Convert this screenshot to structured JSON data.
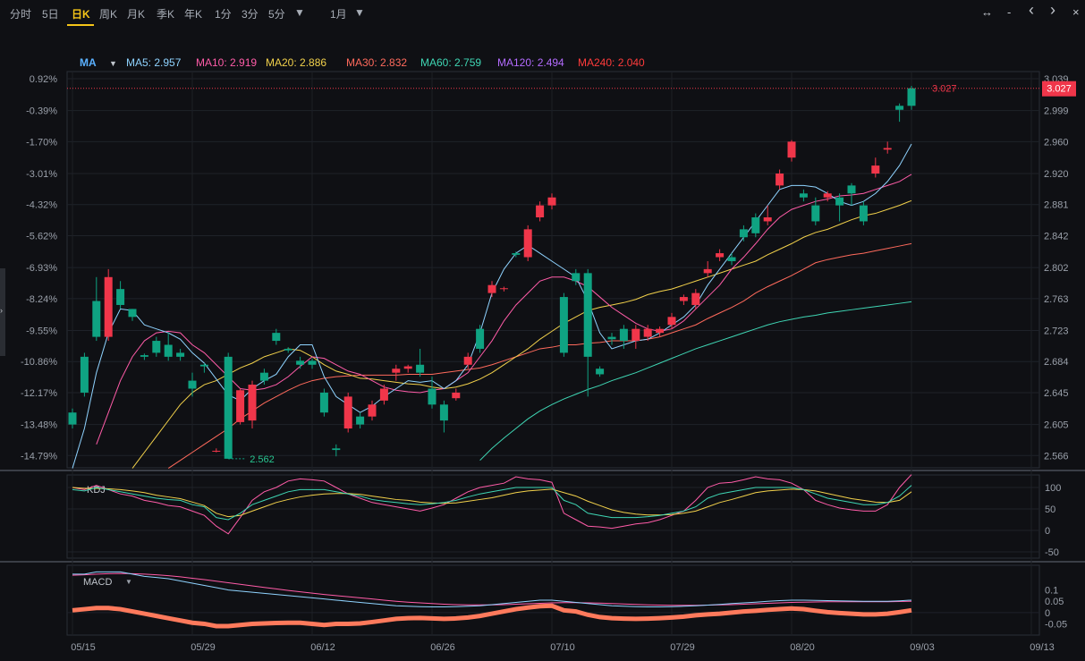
{
  "toolbar": {
    "periods": [
      "分时",
      "5日",
      "日K",
      "周K",
      "月K",
      "季K",
      "年K",
      "1分",
      "3分",
      "5分"
    ],
    "active": "日K",
    "range": "1月",
    "icons": [
      "expand-horizontal-icon",
      "zoom-out-icon",
      "chevron-left-icon",
      "chevron-right-icon",
      "close-icon"
    ]
  },
  "legend": {
    "ma_label": "MA",
    "items": [
      {
        "text": "MA5: 2.957",
        "color": "#8fd3ff"
      },
      {
        "text": "MA10: 2.919",
        "color": "#ff5ca8"
      },
      {
        "text": "MA20: 2.886",
        "color": "#f2d14b"
      },
      {
        "text": "MA30: 2.832",
        "color": "#ff6a5c"
      },
      {
        "text": "MA60: 2.759",
        "color": "#3fd6b4"
      },
      {
        "text": "MA120: 2.494",
        "color": "#b46bff"
      },
      {
        "text": "MA240: 2.040",
        "color": "#ff3b3b"
      }
    ]
  },
  "colors": {
    "up": "#f0364a",
    "down": "#0fa382",
    "ma5": "#8fd3ff",
    "ma10": "#ff5ca8",
    "ma20": "#f2d14b",
    "ma30": "#ff6a5c",
    "ma60": "#3fd6b4",
    "macd_bar": "#ff7a5c"
  },
  "chart_data": {
    "type": "candlestick",
    "y_ticks_price": [
      "3.039",
      "2.999",
      "2.960",
      "2.920",
      "2.881",
      "2.842",
      "2.802",
      "2.763",
      "2.723",
      "2.684",
      "2.645",
      "2.605",
      "2.566"
    ],
    "y_ticks_pct": [
      "0.92%",
      "-0.39%",
      "-1.70%",
      "-3.01%",
      "-4.32%",
      "-5.62%",
      "-6.93%",
      "-8.24%",
      "-9.55%",
      "-10.86%",
      "-12.17%",
      "-13.48%",
      "-14.79%"
    ],
    "x_ticks": [
      "05/15",
      "05/29",
      "06/12",
      "06/26",
      "07/10",
      "07/29",
      "08/20",
      "09/03",
      "09/13"
    ],
    "x_tick_index": [
      0,
      10,
      20,
      30,
      40,
      50,
      60,
      70,
      80
    ],
    "y_range": [
      2.554,
      3.048
    ],
    "last_price": "3.027",
    "low_label": "2.562",
    "low_index": 13,
    "candles": [
      [
        2.62,
        2.605,
        2.625,
        2.6
      ],
      [
        2.69,
        2.645,
        2.695,
        2.64
      ],
      [
        2.76,
        2.715,
        2.79,
        2.71
      ],
      [
        2.715,
        2.79,
        2.8,
        2.71
      ],
      [
        2.775,
        2.755,
        2.785,
        2.75
      ],
      [
        2.75,
        2.74,
        2.75,
        2.735
      ],
      [
        2.692,
        2.69,
        2.694,
        2.686
      ],
      [
        2.71,
        2.695,
        2.715,
        2.69
      ],
      [
        2.705,
        2.69,
        2.72,
        2.685
      ],
      [
        2.695,
        2.69,
        2.7,
        2.685
      ],
      [
        2.66,
        2.65,
        2.67,
        2.64
      ],
      [
        2.68,
        2.678,
        2.682,
        2.67
      ],
      [
        2.572,
        2.572,
        2.575,
        2.57
      ],
      [
        2.69,
        2.562,
        2.695,
        2.562
      ],
      [
        2.608,
        2.648,
        2.65,
        2.605
      ],
      [
        2.61,
        2.655,
        2.66,
        2.6
      ],
      [
        2.67,
        2.66,
        2.675,
        2.655
      ],
      [
        2.72,
        2.71,
        2.725,
        2.705
      ],
      [
        2.7,
        2.698,
        2.702,
        2.695
      ],
      [
        2.685,
        2.68,
        2.69,
        2.675
      ],
      [
        2.685,
        2.68,
        2.688,
        2.675
      ],
      [
        2.645,
        2.62,
        2.65,
        2.615
      ],
      [
        2.575,
        2.573,
        2.58,
        2.565
      ],
      [
        2.6,
        2.64,
        2.645,
        2.595
      ],
      [
        2.615,
        2.605,
        2.62,
        2.6
      ],
      [
        2.615,
        2.63,
        2.635,
        2.61
      ],
      [
        2.635,
        2.65,
        2.655,
        2.63
      ],
      [
        2.67,
        2.675,
        2.68,
        2.66
      ],
      [
        2.675,
        2.678,
        2.68,
        2.67
      ],
      [
        2.68,
        2.67,
        2.7,
        2.665
      ],
      [
        2.65,
        2.63,
        2.665,
        2.625
      ],
      [
        2.63,
        2.61,
        2.635,
        2.595
      ],
      [
        2.638,
        2.645,
        2.65,
        2.635
      ],
      [
        2.68,
        2.69,
        2.695,
        2.675
      ],
      [
        2.725,
        2.7,
        2.73,
        2.695
      ],
      [
        2.77,
        2.78,
        2.785,
        2.765
      ],
      [
        2.775,
        2.776,
        2.778,
        2.772
      ],
      [
        2.82,
        2.818,
        2.822,
        2.815
      ],
      [
        2.815,
        2.85,
        2.855,
        2.81
      ],
      [
        2.865,
        2.88,
        2.885,
        2.86
      ],
      [
        2.88,
        2.89,
        2.895,
        2.875
      ],
      [
        2.765,
        2.695,
        2.77,
        2.69
      ],
      [
        2.795,
        2.785,
        2.8,
        2.78
      ],
      [
        2.795,
        2.69,
        2.8,
        2.64
      ],
      [
        2.675,
        2.668,
        2.678,
        2.665
      ],
      [
        2.715,
        2.712,
        2.72,
        2.705
      ],
      [
        2.725,
        2.71,
        2.73,
        2.7
      ],
      [
        2.71,
        2.725,
        2.73,
        2.7
      ],
      [
        2.715,
        2.725,
        2.73,
        2.71
      ],
      [
        2.72,
        2.725,
        2.728,
        2.715
      ],
      [
        2.73,
        2.74,
        2.745,
        2.725
      ],
      [
        2.76,
        2.765,
        2.768,
        2.755
      ],
      [
        2.755,
        2.77,
        2.775,
        2.75
      ],
      [
        2.795,
        2.8,
        2.81,
        2.79
      ],
      [
        2.815,
        2.82,
        2.825,
        2.81
      ],
      [
        2.815,
        2.81,
        2.82,
        2.805
      ],
      [
        2.85,
        2.84,
        2.855,
        2.835
      ],
      [
        2.865,
        2.845,
        2.87,
        2.84
      ],
      [
        2.86,
        2.865,
        2.88,
        2.855
      ],
      [
        2.905,
        2.92,
        2.925,
        2.9
      ],
      [
        2.94,
        2.96,
        2.962,
        2.935
      ],
      [
        2.895,
        2.89,
        2.9,
        2.885
      ],
      [
        2.88,
        2.86,
        2.89,
        2.855
      ],
      [
        2.89,
        2.895,
        2.898,
        2.885
      ],
      [
        2.89,
        2.88,
        2.895,
        2.86
      ],
      [
        2.905,
        2.895,
        2.908,
        2.88
      ],
      [
        2.88,
        2.86,
        2.885,
        2.855
      ],
      [
        2.92,
        2.93,
        2.94,
        2.915
      ],
      [
        2.95,
        2.952,
        2.96,
        2.945
      ],
      [
        3.005,
        3.0,
        3.008,
        2.985
      ],
      [
        3.027,
        3.005,
        3.03,
        3.0
      ]
    ],
    "ma5": [
      2.55,
      2.6,
      2.67,
      2.72,
      2.75,
      2.748,
      2.73,
      2.725,
      2.72,
      2.712,
      2.695,
      2.682,
      2.662,
      2.642,
      2.635,
      2.65,
      2.66,
      2.668,
      2.69,
      2.705,
      2.705,
      2.665,
      2.64,
      2.63,
      2.62,
      2.628,
      2.64,
      2.65,
      2.66,
      2.658,
      2.66,
      2.65,
      2.66,
      2.68,
      2.72,
      2.77,
      2.8,
      2.82,
      2.83,
      2.82,
      2.81,
      2.8,
      2.79,
      2.76,
      2.72,
      2.7,
      2.705,
      2.71,
      2.712,
      2.72,
      2.73,
      2.74,
      2.755,
      2.78,
      2.8,
      2.82,
      2.84,
      2.86,
      2.88,
      2.9,
      2.905,
      2.905,
      2.903,
      2.895,
      2.885,
      2.88,
      2.885,
      2.895,
      2.91,
      2.93,
      2.957
    ],
    "ma10": [
      2.5,
      2.53,
      2.58,
      2.62,
      2.66,
      2.69,
      2.71,
      2.72,
      2.722,
      2.72,
      2.705,
      2.695,
      2.68,
      2.665,
      2.65,
      2.648,
      2.65,
      2.655,
      2.665,
      2.678,
      2.69,
      2.688,
      2.68,
      2.672,
      2.668,
      2.66,
      2.652,
      2.648,
      2.646,
      2.645,
      2.648,
      2.65,
      2.66,
      2.67,
      2.69,
      2.71,
      2.735,
      2.755,
      2.77,
      2.785,
      2.79,
      2.79,
      2.785,
      2.778,
      2.765,
      2.752,
      2.742,
      2.732,
      2.725,
      2.722,
      2.725,
      2.735,
      2.75,
      2.765,
      2.78,
      2.8,
      2.815,
      2.832,
      2.85,
      2.865,
      2.875,
      2.88,
      2.885,
      2.888,
      2.892,
      2.893,
      2.895,
      2.9,
      2.905,
      2.91,
      2.919
    ],
    "ma20": [
      2.45,
      2.47,
      2.49,
      2.51,
      2.53,
      2.55,
      2.57,
      2.59,
      2.61,
      2.63,
      2.645,
      2.655,
      2.66,
      2.668,
      2.676,
      2.682,
      2.69,
      2.695,
      2.7,
      2.698,
      2.69,
      2.68,
      2.672,
      2.668,
      2.663,
      2.662,
      2.66,
      2.658,
      2.656,
      2.655,
      2.652,
      2.65,
      2.652,
      2.656,
      2.662,
      2.67,
      2.68,
      2.69,
      2.7,
      2.712,
      2.722,
      2.732,
      2.74,
      2.748,
      2.752,
      2.755,
      2.758,
      2.762,
      2.768,
      2.772,
      2.775,
      2.78,
      2.785,
      2.79,
      2.795,
      2.8,
      2.805,
      2.81,
      2.818,
      2.825,
      2.832,
      2.84,
      2.846,
      2.85,
      2.856,
      2.862,
      2.867,
      2.87,
      2.875,
      2.88,
      2.886
    ],
    "ma30": [
      2.4,
      2.42,
      2.44,
      2.46,
      2.48,
      2.5,
      2.52,
      2.54,
      2.55,
      2.56,
      2.57,
      2.58,
      2.59,
      2.6,
      2.612,
      2.622,
      2.632,
      2.64,
      2.648,
      2.655,
      2.66,
      2.663,
      2.665,
      2.666,
      2.667,
      2.667,
      2.667,
      2.667,
      2.668,
      2.668,
      2.668,
      2.67,
      2.672,
      2.674,
      2.676,
      2.68,
      2.685,
      2.69,
      2.695,
      2.7,
      2.702,
      2.705,
      2.705,
      2.707,
      2.708,
      2.71,
      2.71,
      2.71,
      2.712,
      2.715,
      2.72,
      2.725,
      2.73,
      2.738,
      2.745,
      2.752,
      2.76,
      2.77,
      2.778,
      2.785,
      2.792,
      2.8,
      2.808,
      2.812,
      2.815,
      2.818,
      2.82,
      2.823,
      2.826,
      2.829,
      2.832
    ],
    "ma60": [
      2.1,
      2.13,
      2.16,
      2.19,
      2.22,
      2.25,
      2.28,
      2.31,
      2.34,
      2.37,
      2.4,
      2.43,
      2.46,
      2.49,
      2.515,
      2.54,
      2.56,
      2.575,
      2.588,
      2.6,
      2.612,
      2.622,
      2.63,
      2.637,
      2.643,
      2.649,
      2.654,
      2.66,
      2.665,
      2.67,
      2.676,
      2.682,
      2.688,
      2.694,
      2.7,
      2.705,
      2.71,
      2.715,
      2.72,
      2.725,
      2.73,
      2.734,
      2.737,
      2.74,
      2.742,
      2.745,
      2.747,
      2.749,
      2.751,
      2.753,
      2.755,
      2.757,
      2.759
    ],
    "kdj_k": [
      95,
      92,
      100,
      95,
      90,
      85,
      80,
      75,
      72,
      70,
      60,
      55,
      30,
      25,
      40,
      60,
      70,
      80,
      90,
      95,
      95,
      95,
      90,
      85,
      80,
      72,
      68,
      65,
      62,
      60,
      62,
      65,
      70,
      78,
      85,
      90,
      95,
      100,
      100,
      100,
      100,
      70,
      60,
      40,
      35,
      30,
      30,
      30,
      32,
      35,
      40,
      45,
      55,
      75,
      85,
      90,
      95,
      100,
      100,
      100,
      100,
      95,
      85,
      75,
      70,
      65,
      60,
      60,
      65,
      80,
      105
    ],
    "kdj_d": [
      100,
      98,
      98,
      97,
      95,
      92,
      88,
      82,
      78,
      74,
      66,
      58,
      40,
      32,
      35,
      45,
      55,
      65,
      72,
      78,
      82,
      85,
      86,
      86,
      84,
      80,
      76,
      72,
      70,
      66,
      64,
      63,
      64,
      68,
      72,
      76,
      82,
      88,
      92,
      94,
      96,
      88,
      80,
      68,
      58,
      48,
      42,
      38,
      36,
      36,
      37,
      40,
      45,
      55,
      65,
      72,
      80,
      88,
      92,
      94,
      96,
      95,
      92,
      86,
      80,
      74,
      70,
      66,
      65,
      70,
      90
    ],
    "kdj_j": [
      100,
      95,
      105,
      95,
      85,
      80,
      70,
      65,
      58,
      55,
      45,
      35,
      10,
      -8,
      30,
      70,
      90,
      100,
      115,
      120,
      118,
      115,
      100,
      85,
      75,
      65,
      60,
      55,
      50,
      45,
      52,
      60,
      75,
      90,
      100,
      105,
      110,
      125,
      120,
      118,
      112,
      40,
      25,
      10,
      8,
      5,
      10,
      15,
      18,
      25,
      35,
      45,
      70,
      100,
      110,
      112,
      118,
      125,
      120,
      118,
      110,
      95,
      70,
      60,
      52,
      48,
      45,
      45,
      60,
      100,
      130
    ],
    "macd_dif": [
      0.17,
      0.17,
      0.18,
      0.18,
      0.18,
      0.17,
      0.16,
      0.155,
      0.15,
      0.14,
      0.13,
      0.12,
      0.11,
      0.1,
      0.095,
      0.09,
      0.085,
      0.08,
      0.075,
      0.07,
      0.065,
      0.06,
      0.055,
      0.05,
      0.045,
      0.04,
      0.035,
      0.03,
      0.028,
      0.026,
      0.025,
      0.025,
      0.026,
      0.028,
      0.03,
      0.035,
      0.04,
      0.045,
      0.05,
      0.055,
      0.055,
      0.05,
      0.045,
      0.04,
      0.035,
      0.03,
      0.028,
      0.026,
      0.025,
      0.025,
      0.026,
      0.028,
      0.03,
      0.033,
      0.036,
      0.04,
      0.043,
      0.046,
      0.05,
      0.053,
      0.055,
      0.055,
      0.054,
      0.053,
      0.052,
      0.051,
      0.05,
      0.05,
      0.05,
      0.052,
      0.055
    ],
    "macd_dea": [
      0.165,
      0.167,
      0.17,
      0.172,
      0.173,
      0.172,
      0.17,
      0.167,
      0.163,
      0.158,
      0.152,
      0.146,
      0.139,
      0.132,
      0.125,
      0.118,
      0.111,
      0.105,
      0.098,
      0.092,
      0.086,
      0.08,
      0.075,
      0.07,
      0.065,
      0.06,
      0.055,
      0.05,
      0.046,
      0.043,
      0.04,
      0.037,
      0.035,
      0.034,
      0.034,
      0.034,
      0.035,
      0.037,
      0.039,
      0.041,
      0.043,
      0.044,
      0.044,
      0.043,
      0.042,
      0.04,
      0.038,
      0.036,
      0.034,
      0.033,
      0.032,
      0.032,
      0.032,
      0.033,
      0.034,
      0.035,
      0.037,
      0.039,
      0.041,
      0.043,
      0.045,
      0.046,
      0.047,
      0.048,
      0.048,
      0.048,
      0.048,
      0.048,
      0.048,
      0.049,
      0.05
    ],
    "macd_line": [
      0.01,
      0.015,
      0.02,
      0.02,
      0.015,
      0.005,
      -0.005,
      -0.015,
      -0.025,
      -0.035,
      -0.045,
      -0.05,
      -0.06,
      -0.06,
      -0.055,
      -0.05,
      -0.048,
      -0.046,
      -0.045,
      -0.045,
      -0.05,
      -0.055,
      -0.05,
      -0.05,
      -0.048,
      -0.042,
      -0.035,
      -0.028,
      -0.025,
      -0.024,
      -0.026,
      -0.028,
      -0.026,
      -0.022,
      -0.015,
      -0.005,
      0.005,
      0.015,
      0.022,
      0.028,
      0.03,
      0.01,
      0.005,
      -0.01,
      -0.02,
      -0.025,
      -0.027,
      -0.028,
      -0.027,
      -0.025,
      -0.022,
      -0.018,
      -0.012,
      -0.008,
      -0.005,
      0.0,
      0.005,
      0.008,
      0.012,
      0.015,
      0.018,
      0.015,
      0.008,
      0.002,
      -0.002,
      -0.005,
      -0.008,
      -0.008,
      -0.005,
      0.002,
      0.01
    ],
    "kdj_label": "KDJ",
    "kdj_ticks": [
      "100",
      "50",
      "0",
      "-50"
    ],
    "kdj_tick_values": [
      100,
      50,
      0,
      -50
    ],
    "macd_label": "MACD",
    "macd_ticks": [
      "0.1",
      "0.05",
      "0",
      "-0.05"
    ],
    "macd_tick_values": [
      0.1,
      0.05,
      0,
      -0.05
    ]
  }
}
